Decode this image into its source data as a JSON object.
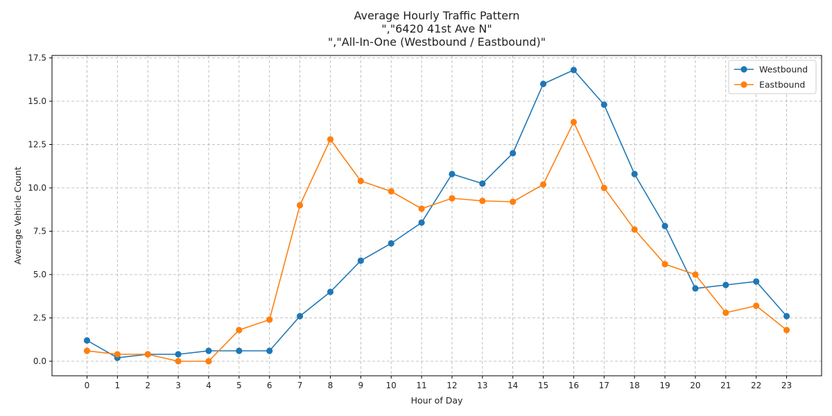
{
  "chart_data": {
    "type": "line",
    "title_lines": [
      "Average Hourly Traffic Pattern",
      "\",\"6420 41st Ave N\"",
      "\",\"All-In-One (Westbound / Eastbound)\""
    ],
    "xlabel": "Hour of Day",
    "ylabel": "Average Vehicle Count",
    "x": [
      0,
      1,
      2,
      3,
      4,
      5,
      6,
      7,
      8,
      9,
      10,
      11,
      12,
      13,
      14,
      15,
      16,
      17,
      18,
      19,
      20,
      21,
      22,
      23
    ],
    "x_tick_labels": [
      "0",
      "1",
      "2",
      "3",
      "4",
      "5",
      "6",
      "7",
      "8",
      "9",
      "10",
      "11",
      "12",
      "13",
      "14",
      "15",
      "16",
      "17",
      "18",
      "19",
      "20",
      "21",
      "22",
      "23"
    ],
    "y_ticks": [
      0.0,
      2.5,
      5.0,
      7.5,
      10.0,
      12.5,
      15.0,
      17.5
    ],
    "y_tick_labels": [
      "0.0",
      "2.5",
      "5.0",
      "7.5",
      "10.0",
      "12.5",
      "15.0",
      "17.5"
    ],
    "xlim": [
      -1.15,
      24.15
    ],
    "ylim": [
      -0.84,
      17.64
    ],
    "grid": true,
    "legend_position": "top-right",
    "series": [
      {
        "name": "Westbound",
        "color": "#1f77b4",
        "values": [
          1.2,
          0.2,
          0.4,
          0.4,
          0.6,
          0.6,
          0.6,
          2.6,
          4.0,
          5.8,
          6.8,
          8.0,
          10.8,
          10.25,
          12.0,
          16.0,
          16.8,
          14.8,
          10.8,
          7.8,
          4.2,
          4.4,
          4.6,
          2.6
        ]
      },
      {
        "name": "Eastbound",
        "color": "#ff7f0e",
        "values": [
          0.6,
          0.4,
          0.4,
          0.0,
          0.0,
          1.8,
          2.4,
          9.0,
          12.8,
          10.4,
          9.8,
          8.8,
          9.4,
          9.25,
          9.2,
          10.2,
          13.8,
          10.0,
          7.6,
          5.6,
          5.0,
          2.8,
          3.2,
          1.8
        ]
      }
    ]
  }
}
